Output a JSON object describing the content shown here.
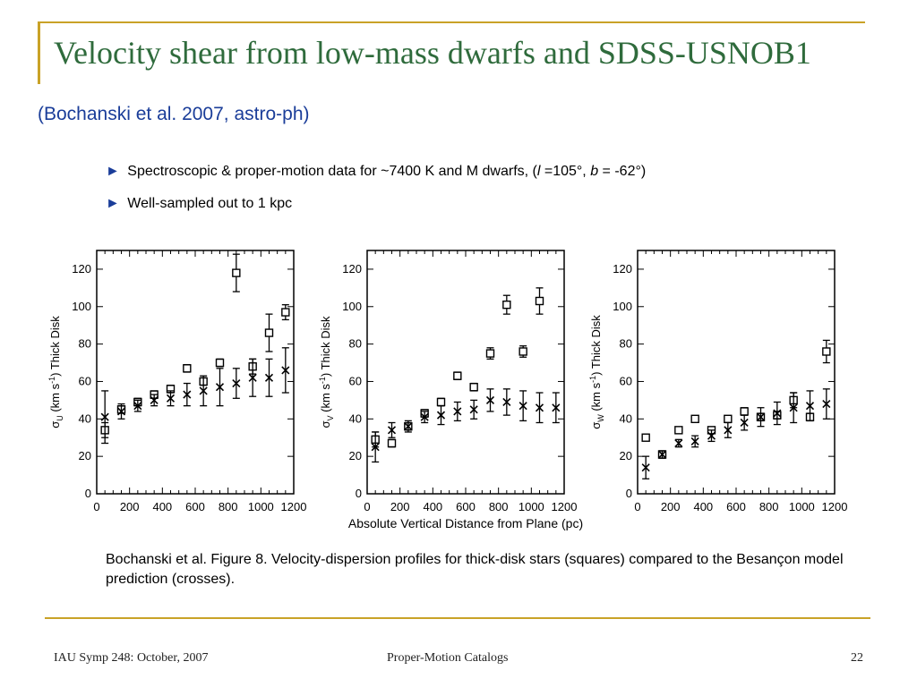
{
  "slide": {
    "title": "Velocity shear from low-mass dwarfs and SDSS-USNOB1",
    "subtitle": "(Bochanski et al. 2007, astro-ph)",
    "bullets": [
      {
        "marker": "►",
        "text_a": "Spectroscopic & proper-motion data for ~7400 K and M dwarfs, (",
        "var1": "l",
        "text_b": " =105°, ",
        "var2": "b",
        "text_c": " = -62°)"
      },
      {
        "marker": "►",
        "text": "Well-sampled out to 1 kpc"
      }
    ],
    "caption": "Bochanski et al. Figure 8. Velocity-dispersion profiles for thick-disk stars (squares) compared to the Besançon model prediction (crosses).",
    "footer": {
      "left": "IAU Symp 248: October, 2007",
      "center": "Proper-Motion Catalogs",
      "page": "22"
    },
    "colors": {
      "accent": "#c9a227",
      "title": "#2f6b3c",
      "subtitle": "#1a3d99",
      "arrow": "#1a3d99"
    }
  },
  "chart_data": [
    {
      "type": "scatter",
      "sigma": "σ",
      "sub": "U",
      "ylabel_rest": " (km s",
      "sup": "-1",
      "ylabel_end": ")  Thick Disk",
      "xlabel": "",
      "xlim": [
        0,
        1200
      ],
      "ylim": [
        0,
        130
      ],
      "xticks": [
        0,
        200,
        400,
        600,
        800,
        1000,
        1200
      ],
      "yticks": [
        0,
        20,
        40,
        60,
        80,
        100,
        120
      ],
      "grid": false,
      "series": [
        {
          "marker": "square",
          "x": [
            50,
            150,
            250,
            350,
            450,
            550,
            650,
            750,
            850,
            950,
            1050,
            1150
          ],
          "y": [
            34,
            45,
            49,
            53,
            56,
            67,
            60,
            70,
            118,
            68,
            86,
            97
          ],
          "err": [
            4,
            2,
            2,
            2,
            2,
            2,
            2,
            2,
            10,
            4,
            10,
            4
          ]
        },
        {
          "marker": "cross",
          "x": [
            50,
            150,
            250,
            350,
            450,
            550,
            650,
            750,
            850,
            950,
            1050,
            1150
          ],
          "y": [
            41,
            44,
            47,
            50,
            51,
            53,
            55,
            57,
            59,
            62,
            62,
            66
          ],
          "err": [
            14,
            4,
            3,
            3,
            4,
            6,
            8,
            10,
            8,
            10,
            10,
            12
          ]
        }
      ]
    },
    {
      "type": "scatter",
      "sigma": "σ",
      "sub": "V",
      "ylabel_rest": " (km s",
      "sup": "-1",
      "ylabel_end": ")  Thick Disk",
      "xlabel": "Absolute Vertical Distance from Plane (pc)",
      "xlim": [
        0,
        1200
      ],
      "ylim": [
        0,
        130
      ],
      "xticks": [
        0,
        200,
        400,
        600,
        800,
        1000,
        1200
      ],
      "yticks": [
        0,
        20,
        40,
        60,
        80,
        100,
        120
      ],
      "grid": false,
      "series": [
        {
          "marker": "square",
          "x": [
            50,
            150,
            250,
            350,
            450,
            550,
            650,
            750,
            850,
            950,
            1050,
            1150
          ],
          "y": [
            29,
            27,
            36,
            43,
            49,
            63,
            57,
            75,
            101,
            76,
            103,
            null
          ],
          "err": [
            4,
            2,
            2,
            2,
            2,
            2,
            2,
            3,
            5,
            3,
            7,
            0
          ]
        },
        {
          "marker": "cross",
          "x": [
            50,
            150,
            250,
            350,
            450,
            550,
            650,
            750,
            850,
            950,
            1050,
            1150
          ],
          "y": [
            25,
            34,
            36,
            41,
            42,
            44,
            45,
            50,
            49,
            47,
            46,
            46
          ],
          "err": [
            8,
            4,
            3,
            3,
            5,
            5,
            5,
            6,
            7,
            8,
            8,
            8
          ]
        }
      ]
    },
    {
      "type": "scatter",
      "sigma": "σ",
      "sub": "W",
      "ylabel_rest": " (km s",
      "sup": "-1",
      "ylabel_end": ")  Thick Disk",
      "xlabel": "",
      "xlim": [
        0,
        1200
      ],
      "ylim": [
        0,
        130
      ],
      "xticks": [
        0,
        200,
        400,
        600,
        800,
        1000,
        1200
      ],
      "yticks": [
        0,
        20,
        40,
        60,
        80,
        100,
        120
      ],
      "grid": false,
      "series": [
        {
          "marker": "square",
          "x": [
            50,
            150,
            250,
            350,
            450,
            550,
            650,
            750,
            850,
            950,
            1050,
            1150
          ],
          "y": [
            30,
            21,
            34,
            40,
            34,
            40,
            44,
            41,
            42,
            50,
            41,
            76
          ],
          "err": [
            1,
            1,
            1,
            1,
            1,
            1,
            2,
            2,
            2,
            4,
            2,
            6
          ]
        },
        {
          "marker": "cross",
          "x": [
            50,
            150,
            250,
            350,
            450,
            550,
            650,
            750,
            850,
            950,
            1050,
            1150
          ],
          "y": [
            14,
            21,
            27,
            28,
            31,
            34,
            38,
            41,
            43,
            46,
            47,
            48
          ],
          "err": [
            6,
            2,
            2,
            3,
            3,
            4,
            4,
            5,
            6,
            8,
            8,
            8
          ]
        }
      ]
    }
  ]
}
